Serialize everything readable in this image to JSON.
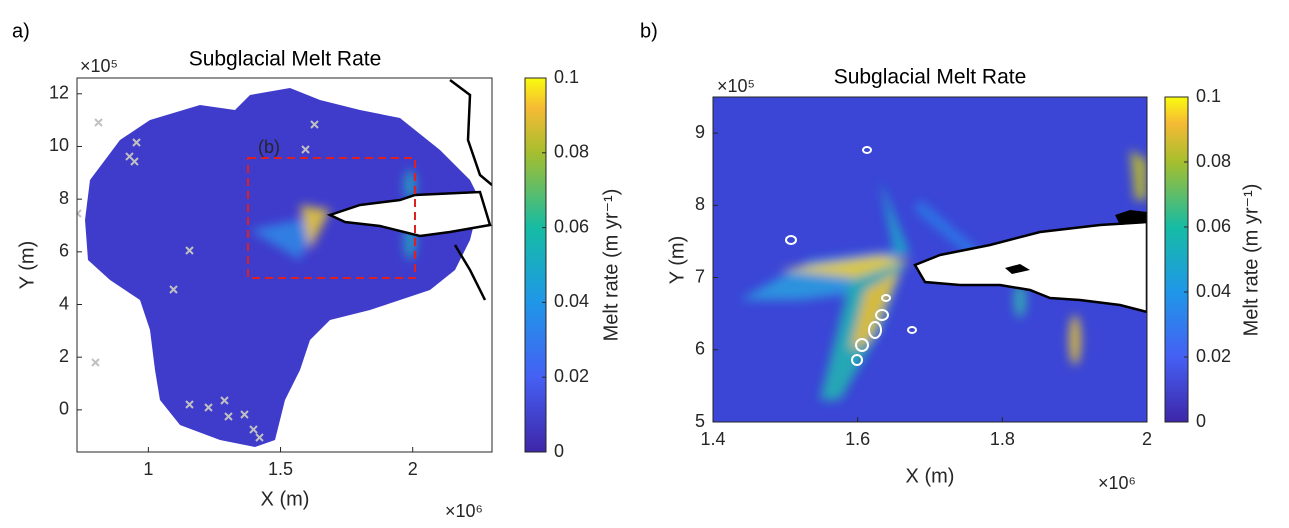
{
  "chart_data": [
    {
      "type": "heatmap",
      "panel_label": "a)",
      "title": "Subglacial Melt Rate",
      "xlabel": "X (m)",
      "ylabel": "Y (m)",
      "x_multiplier": "×10⁶",
      "y_multiplier": "×10⁵",
      "annotation": "(b)",
      "xlim": [
        0.73,
        2.3
      ],
      "xticks": [
        1,
        1.5,
        2
      ],
      "ylim": [
        -1.6,
        12.6
      ],
      "yticks": [
        0,
        2,
        4,
        6,
        8,
        10,
        12
      ],
      "colorbar": {
        "label": "Melt rate (m yr⁻¹)",
        "lim": [
          0,
          0.1
        ],
        "ticks": [
          0,
          0.02,
          0.04,
          0.06,
          0.08,
          0.1
        ]
      }
    },
    {
      "type": "heatmap",
      "panel_label": "b)",
      "title": "Subglacial Melt Rate",
      "xlabel": "X (m)",
      "ylabel": "Y (m)",
      "x_multiplier": "×10⁶",
      "y_multiplier": "×10⁵",
      "xlim": [
        1.4,
        2
      ],
      "xticks": [
        1.4,
        1.6,
        1.8,
        2
      ],
      "ylim": [
        5,
        9.5
      ],
      "yticks": [
        5,
        6,
        7,
        8,
        9
      ],
      "colorbar": {
        "label": "Melt rate (m yr⁻¹)",
        "lim": [
          0,
          0.1
        ],
        "ticks": [
          0,
          0.02,
          0.04,
          0.06,
          0.08,
          0.1
        ]
      }
    }
  ]
}
